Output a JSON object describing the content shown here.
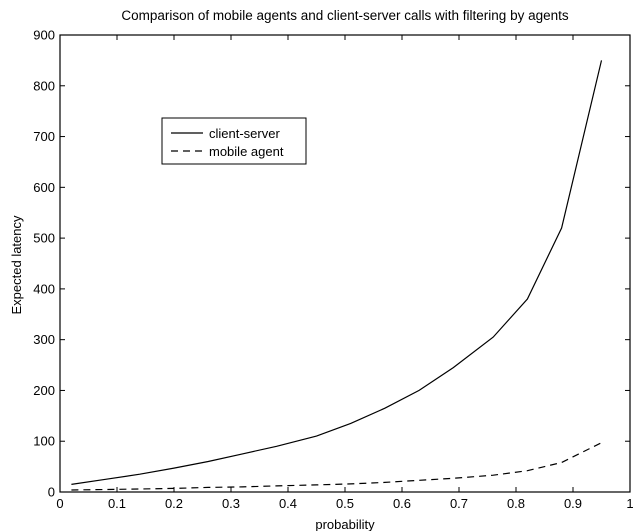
{
  "chart_data": {
    "type": "line",
    "title": "Comparison of mobile agents and client-server calls with filtering by agents",
    "xlabel": "probability",
    "ylabel": "Expected latency",
    "xlim": [
      0,
      1
    ],
    "ylim": [
      0,
      900
    ],
    "xticks": [
      0,
      0.1,
      0.2,
      0.3,
      0.4,
      0.5,
      0.6,
      0.7,
      0.8,
      0.9,
      1
    ],
    "xtick_labels": [
      "0",
      "0.1",
      "0.2",
      "0.3",
      "0.4",
      "0.5",
      "0.6",
      "0.7",
      "0.8",
      "0.9",
      "1"
    ],
    "yticks": [
      0,
      100,
      200,
      300,
      400,
      500,
      600,
      700,
      800,
      900
    ],
    "ytick_labels": [
      "0",
      "100",
      "200",
      "300",
      "400",
      "500",
      "600",
      "700",
      "800",
      "900"
    ],
    "grid": false,
    "legend": {
      "placement": "upper-left inside"
    },
    "series": [
      {
        "name": "client-server",
        "style": "solid",
        "color": "#000000",
        "x": [
          0.02,
          0.08,
          0.14,
          0.2,
          0.26,
          0.32,
          0.38,
          0.45,
          0.51,
          0.57,
          0.63,
          0.69,
          0.76,
          0.82,
          0.88,
          0.95
        ],
        "y": [
          15,
          25,
          35,
          47,
          60,
          75,
          90,
          110,
          135,
          165,
          200,
          245,
          305,
          380,
          520,
          850
        ]
      },
      {
        "name": "mobile agent",
        "style": "dashed",
        "color": "#000000",
        "x": [
          0.02,
          0.08,
          0.14,
          0.2,
          0.26,
          0.32,
          0.38,
          0.45,
          0.51,
          0.57,
          0.63,
          0.69,
          0.76,
          0.82,
          0.88,
          0.95
        ],
        "y": [
          4,
          5,
          6,
          7,
          9,
          10,
          12,
          14,
          16,
          19,
          23,
          27,
          33,
          42,
          58,
          97
        ]
      }
    ]
  }
}
